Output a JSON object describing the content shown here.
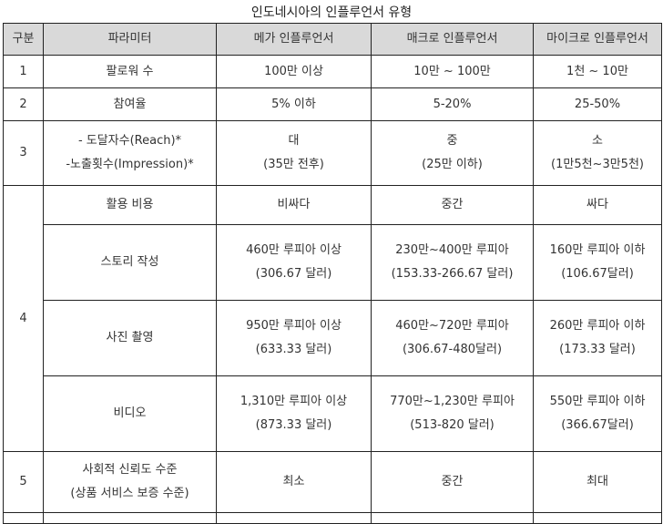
{
  "title": "인도네시아의 인플루언서 유형",
  "header": [
    "구분",
    "파라미터",
    "메가 인플루언서",
    "매크로 인플루언서",
    "마이크로 인플루언서"
  ],
  "rows": [
    {
      "no": "1",
      "param": [
        "팔로워 수"
      ],
      "mega": [
        "100만 이상"
      ],
      "macro": [
        "10만 ~ 100만"
      ],
      "micro": [
        "1천 ~ 10만"
      ]
    },
    {
      "no": "2",
      "param": [
        "참여율"
      ],
      "mega": [
        "5% 이하"
      ],
      "macro": [
        "5-20%"
      ],
      "micro": [
        "25-50%"
      ]
    },
    {
      "no": "3",
      "param": [
        "- 도달자수(Reach)*",
        "-노출횟수(Impression)*"
      ],
      "mega": [
        "대",
        "(35만 전후)"
      ],
      "macro": [
        "중",
        "(25만 이하)"
      ],
      "micro": [
        "소",
        "(1만5천~3만5천)"
      ]
    },
    {
      "no": "4",
      "param": [
        "활용 비용"
      ],
      "mega": [
        "비싸다"
      ],
      "macro": [
        "중간"
      ],
      "micro": [
        "싸다"
      ]
    },
    {
      "no": "",
      "param": [
        "스토리 작성"
      ],
      "mega": [
        "460만 루피아 이상",
        "(306.67 달러)"
      ],
      "macro": [
        "230만~400만 루피아",
        "(153.33-266.67 달러)"
      ],
      "micro": [
        "160만 루피아 이하",
        "(106.67달러)"
      ]
    },
    {
      "no": "",
      "param": [
        "사진 촬영"
      ],
      "mega": [
        "950만 루피아 이상",
        "(633.33 달러)"
      ],
      "macro": [
        "460만~720만 루피아",
        "(306.67-480달러)"
      ],
      "micro": [
        "260만 루피아 이하",
        "(173.33 달러)"
      ]
    },
    {
      "no": "",
      "param": [
        "비디오"
      ],
      "mega": [
        "1,310만 루피아 이상",
        "(873.33 달러)"
      ],
      "macro": [
        "770만~1,230만 루피아",
        "(513-820 달러)"
      ],
      "micro": [
        "550만 루피아 이하",
        "(366.67달러)"
      ]
    },
    {
      "no": "5",
      "param": [
        "사회적 신뢰도 수준",
        "(상품 서비스 보증 수준)"
      ],
      "mega": [
        "최소"
      ],
      "macro": [
        "중간"
      ],
      "micro": [
        "최대"
      ]
    }
  ]
}
